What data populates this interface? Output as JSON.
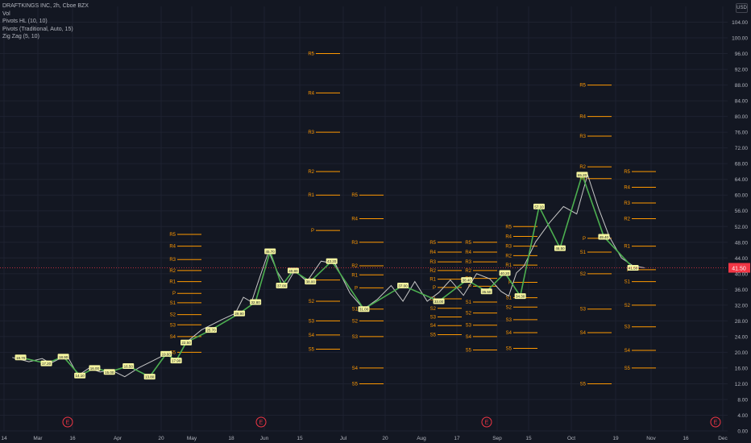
{
  "legend": {
    "symbol": "DRAFTKINGS INC, 2h, Cboe BZX",
    "vol": "Vol",
    "pivots_hl": "Pivots HL (10, 10)",
    "pivots_traditional": "Pivots (Traditional, Auto, 15)",
    "zigzag": "Zig Zag (5, 10)"
  },
  "currency": "USD",
  "colors": {
    "background": "#131722",
    "price_line": "#c8c8c8",
    "zigzag": "#4caf50",
    "pivot_level": "#ff9800",
    "last_price": "#f23645",
    "earnings": "#f23645",
    "pivot_label_bg": "#f5f5a0"
  },
  "chart_data": {
    "type": "line",
    "ylim": [
      0,
      108
    ],
    "yticks": [
      "0.00",
      "4.00",
      "8.00",
      "12.00",
      "16.00",
      "20.00",
      "24.00",
      "28.00",
      "32.00",
      "36.00",
      "40.00",
      "44.00",
      "48.00",
      "52.00",
      "56.00",
      "60.00",
      "64.00",
      "68.00",
      "72.00",
      "76.00",
      "80.00",
      "84.00",
      "88.00",
      "92.00",
      "96.00",
      "100.00",
      "104.00"
    ],
    "xticks": [
      "14",
      "Mar",
      "16",
      "Apr",
      "20",
      "May",
      "18",
      "Jun",
      "15",
      "Jul",
      "20",
      "Aug",
      "17",
      "Sep",
      "15",
      "Oct",
      "19",
      "Nov",
      "16",
      "Dec"
    ],
    "last_price": "41.50",
    "last_price_value": 41.5,
    "earnings_label": "E",
    "earnings_ticks": [
      "Mar",
      "18",
      "17",
      "16"
    ],
    "price_series": [
      [
        "14",
        18.7
      ],
      [
        "14",
        17.6
      ],
      [
        "Mar",
        18.4
      ],
      [
        "Mar",
        17.2
      ],
      [
        "Mar",
        18.3
      ],
      [
        "Mar",
        18.9
      ],
      [
        "16",
        14.1
      ],
      [
        "16",
        16.0
      ],
      [
        "16",
        15.0
      ],
      [
        "16",
        15.5
      ],
      [
        "Apr",
        13.8
      ],
      [
        "Apr",
        16.1
      ],
      [
        "Apr",
        17.9
      ],
      [
        "20",
        19.6
      ],
      [
        "20",
        17.9
      ],
      [
        "20",
        22.5
      ],
      [
        "May",
        25.7
      ],
      [
        "May",
        28.2
      ],
      [
        "18",
        29.9
      ],
      [
        "18",
        34.0
      ],
      [
        "18",
        32.8
      ],
      [
        "18",
        39.0
      ],
      [
        "Jun",
        45.7
      ],
      [
        "Jun",
        40.5
      ],
      [
        "Jun",
        37.0
      ],
      [
        "Jun",
        40.8
      ],
      [
        "15",
        38.0
      ],
      [
        "15",
        43.2
      ],
      [
        "15",
        42.5
      ],
      [
        "Jul",
        35.0
      ],
      [
        "Jul",
        31.0
      ],
      [
        "Jul",
        33.5
      ],
      [
        "20",
        37.0
      ],
      [
        "20",
        33.0
      ],
      [
        "20",
        38.0
      ],
      [
        "Aug",
        33.0
      ],
      [
        "Aug",
        35.2
      ],
      [
        "Aug",
        38.4
      ],
      [
        "17",
        34.5
      ],
      [
        "17",
        40.0
      ],
      [
        "17",
        38.7
      ],
      [
        "Sep",
        35.5
      ],
      [
        "Sep",
        34.3
      ],
      [
        "Sep",
        40.2
      ],
      [
        "Sep",
        42.0
      ],
      [
        "15",
        48.1
      ],
      [
        "15",
        53.0
      ],
      [
        "15",
        57.1
      ],
      [
        "Oct",
        55.2
      ],
      [
        "Oct",
        65.2
      ],
      [
        "Oct",
        56.7
      ],
      [
        "Oct",
        49.4
      ],
      [
        "19",
        44.0
      ],
      [
        "19",
        42.0
      ],
      [
        "19",
        41.5
      ]
    ],
    "zigzag": [
      [
        "14",
        18.7
      ],
      [
        "Mar",
        17.2
      ],
      [
        "Mar",
        18.9
      ],
      [
        "16",
        14.1
      ],
      [
        "16",
        16.0
      ],
      [
        "16",
        15.0
      ],
      [
        "Apr",
        16.5
      ],
      [
        "Apr",
        13.8
      ],
      [
        "20",
        19.6
      ],
      [
        "20",
        17.9
      ],
      [
        "20",
        22.5
      ],
      [
        "May",
        25.7
      ],
      [
        "18",
        29.9
      ],
      [
        "18",
        32.8
      ],
      [
        "Jun",
        45.7
      ],
      [
        "Jun",
        37.0
      ],
      [
        "Jun",
        40.8
      ],
      [
        "15",
        38.0
      ],
      [
        "15",
        43.2
      ],
      [
        "Jul",
        31.0
      ],
      [
        "20",
        37.0
      ],
      [
        "Aug",
        33.0
      ],
      [
        "17",
        38.4
      ],
      [
        "17",
        35.5
      ],
      [
        "Sep",
        40.2
      ],
      [
        "Sep",
        34.3
      ],
      [
        "15",
        57.1
      ],
      [
        "15",
        46.5
      ],
      [
        "Oct",
        65.2
      ],
      [
        "Oct",
        49.4
      ],
      [
        "19",
        41.5
      ]
    ],
    "pivot_hl_labels": [
      [
        "14",
        "18.70"
      ],
      [
        "Mar",
        "17.20"
      ],
      [
        "Mar",
        "18.90"
      ],
      [
        "16",
        "14.10"
      ],
      [
        "16",
        "16.00"
      ],
      [
        "16",
        "15.00"
      ],
      [
        "Apr",
        "16.50"
      ],
      [
        "Apr",
        "13.80"
      ],
      [
        "20",
        "19.60"
      ],
      [
        "20",
        "17.90"
      ],
      [
        "20",
        "22.50"
      ],
      [
        "May",
        "25.70"
      ],
      [
        "18",
        "29.90"
      ],
      [
        "18",
        "32.80"
      ],
      [
        "Jun",
        "45.70"
      ],
      [
        "Jun",
        "37.00"
      ],
      [
        "Jun",
        "40.80"
      ],
      [
        "15",
        "38.00"
      ],
      [
        "15",
        "43.20"
      ],
      [
        "Jul",
        "31.00"
      ],
      [
        "20",
        "37.00"
      ],
      [
        "Aug",
        "33.00"
      ],
      [
        "17",
        "38.40"
      ],
      [
        "17",
        "35.50"
      ],
      [
        "Sep",
        "40.20"
      ],
      [
        "Sep",
        "34.30"
      ],
      [
        "15",
        "57.10"
      ],
      [
        "15",
        "46.50"
      ],
      [
        "Oct",
        "65.20"
      ],
      [
        "Oct",
        "49.40"
      ],
      [
        "19",
        "41.50"
      ]
    ],
    "pivot_levels": [
      {
        "start": "Jul",
        "levels": [
          [
            "R5",
            60
          ],
          [
            "R4",
            54
          ],
          [
            "R3",
            48
          ],
          [
            "R2",
            42
          ],
          [
            "R1",
            39.7
          ],
          [
            "P",
            36.4
          ],
          [
            "S1",
            31
          ],
          [
            "S2",
            28
          ],
          [
            "S3",
            24
          ],
          [
            "S4",
            16
          ],
          [
            "S5",
            12
          ]
        ]
      },
      {
        "start": "20",
        "levels": [
          [
            "R5",
            50
          ],
          [
            "R4",
            47
          ],
          [
            "R3",
            43.6
          ],
          [
            "R2",
            40.8
          ],
          [
            "R1",
            38
          ],
          [
            "P",
            35
          ],
          [
            "S1",
            32.6
          ],
          [
            "S2",
            29.6
          ],
          [
            "S3",
            27
          ],
          [
            "S4",
            24
          ],
          [
            "S5",
            20
          ]
        ]
      },
      {
        "start": "Aug",
        "levels": [
          [
            "R5",
            48
          ],
          [
            "R4",
            45.5
          ],
          [
            "R3",
            43
          ],
          [
            "R2",
            40.8
          ],
          [
            "R1",
            38.6
          ],
          [
            "P",
            36.5
          ],
          [
            "S1",
            33.6
          ],
          [
            "S2",
            31.2
          ],
          [
            "S3",
            29
          ],
          [
            "S4",
            26.8
          ],
          [
            "S5",
            24.5
          ]
        ]
      },
      {
        "start": "17",
        "levels": [
          [
            "R5",
            48
          ],
          [
            "R4",
            45.5
          ],
          [
            "R3",
            43
          ],
          [
            "R2",
            40.8
          ],
          [
            "R1",
            38.8
          ],
          [
            "P",
            36.8
          ],
          [
            "S1",
            32.8
          ],
          [
            "S2",
            30
          ],
          [
            "S3",
            26.9
          ],
          [
            "S4",
            24
          ],
          [
            "S5",
            20.6
          ]
        ]
      },
      {
        "start": "Sep",
        "levels": [
          [
            "R5",
            52
          ],
          [
            "R4",
            49.5
          ],
          [
            "R3",
            47
          ],
          [
            "R2",
            44.6
          ],
          [
            "R1",
            42.2
          ],
          [
            "P",
            37.8
          ],
          [
            "S1",
            33.9
          ],
          [
            "S2",
            31.5
          ],
          [
            "S3",
            28.3
          ],
          [
            "S4",
            25
          ],
          [
            "S5",
            21
          ]
        ]
      },
      {
        "start": "15",
        "levels": [
          [
            "R5",
            96
          ],
          [
            "R4",
            86
          ],
          [
            "R3",
            76
          ],
          [
            "R2",
            66
          ],
          [
            "R1",
            60
          ],
          [
            "P",
            51
          ],
          [
            "S1",
            38.4
          ],
          [
            "S2",
            33
          ],
          [
            "S3",
            28
          ],
          [
            "S4",
            24.4
          ],
          [
            "S5",
            20.8
          ]
        ]
      },
      {
        "start": "Oct",
        "levels": [
          [
            "R5",
            88
          ],
          [
            "R4",
            80
          ],
          [
            "R3",
            75
          ],
          [
            "R2",
            67.2
          ],
          [
            "R1",
            64.2
          ],
          [
            "P",
            49
          ],
          [
            "S1",
            45.5
          ],
          [
            "S2",
            40
          ],
          [
            "S3",
            31
          ],
          [
            "S4",
            25
          ],
          [
            "S5",
            12
          ]
        ]
      },
      {
        "start": "19",
        "levels": [
          [
            "R5",
            66
          ],
          [
            "R4",
            62
          ],
          [
            "R3",
            58
          ],
          [
            "R2",
            54
          ],
          [
            "R1",
            47
          ],
          [
            "P",
            41
          ],
          [
            "S1",
            38
          ],
          [
            "S2",
            32
          ],
          [
            "S3",
            26.5
          ],
          [
            "S4",
            20.5
          ],
          [
            "S5",
            16
          ]
        ]
      }
    ]
  }
}
